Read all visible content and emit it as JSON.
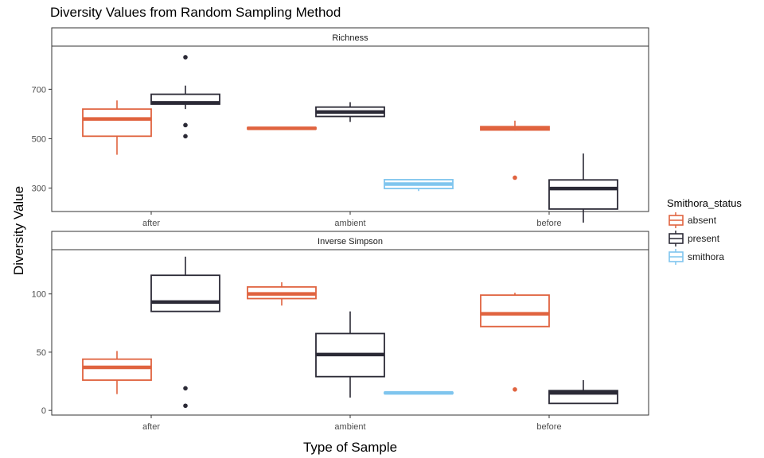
{
  "chart_data": {
    "type": "boxplot",
    "title": "Diversity Values from Random Sampling Method",
    "xlabel": "Type of Sample",
    "ylabel": "Diversity Value",
    "legend": {
      "title": "Smithora_status",
      "position": "right",
      "entries": [
        {
          "name": "absent",
          "color": "#E0633F"
        },
        {
          "name": "present",
          "color": "#2B2A36"
        },
        {
          "name": "smithora",
          "color": "#7FC5EE"
        }
      ]
    },
    "categories": [
      "after",
      "ambient",
      "before"
    ],
    "facets": [
      {
        "label": "Richness",
        "ylim": [
          205,
          875
        ],
        "yticks": [
          300,
          500,
          700
        ],
        "boxes": [
          {
            "category": "after",
            "series": "absent",
            "min": 435,
            "q1": 510,
            "median": 580,
            "q3": 620,
            "max": 655,
            "outliers": []
          },
          {
            "category": "after",
            "series": "present",
            "min": 620,
            "q1": 640,
            "median": 645,
            "q3": 680,
            "max": 715,
            "outliers": [
              830,
              555,
              510
            ]
          },
          {
            "category": "ambient",
            "series": "absent",
            "min": 537,
            "q1": 539,
            "median": 542,
            "q3": 545,
            "max": 547,
            "outliers": []
          },
          {
            "category": "ambient",
            "series": "present",
            "min": 568,
            "q1": 590,
            "median": 608,
            "q3": 628,
            "max": 648,
            "outliers": []
          },
          {
            "category": "ambient",
            "series": "smithora",
            "min": 288,
            "q1": 298,
            "median": 316,
            "q3": 334,
            "max": 335,
            "outliers": []
          },
          {
            "category": "before",
            "series": "absent",
            "min": 532,
            "q1": 535,
            "median": 543,
            "q3": 549,
            "max": 573,
            "outliers": [
              342
            ]
          },
          {
            "category": "before",
            "series": "present",
            "min": 160,
            "q1": 215,
            "median": 298,
            "q3": 333,
            "max": 440,
            "outliers": []
          }
        ]
      },
      {
        "label": "Inverse Simpson",
        "ylim": [
          -4,
          138
        ],
        "yticks": [
          0,
          50,
          100
        ],
        "boxes": [
          {
            "category": "after",
            "series": "absent",
            "min": 14,
            "q1": 26,
            "median": 37,
            "q3": 44,
            "max": 51,
            "outliers": []
          },
          {
            "category": "after",
            "series": "present",
            "min": 85,
            "q1": 85,
            "median": 93,
            "q3": 116,
            "max": 132,
            "outliers": [
              19,
              4
            ]
          },
          {
            "category": "ambient",
            "series": "absent",
            "min": 90,
            "q1": 96,
            "median": 100,
            "q3": 106,
            "max": 110,
            "outliers": []
          },
          {
            "category": "ambient",
            "series": "present",
            "min": 11,
            "q1": 29,
            "median": 48,
            "q3": 66,
            "max": 85,
            "outliers": []
          },
          {
            "category": "ambient",
            "series": "smithora",
            "min": 14,
            "q1": 14.5,
            "median": 15,
            "q3": 15.5,
            "max": 16,
            "outliers": []
          },
          {
            "category": "before",
            "series": "absent",
            "min": 72,
            "q1": 72,
            "median": 83,
            "q3": 99,
            "max": 101,
            "outliers": [
              18
            ]
          },
          {
            "category": "before",
            "series": "present",
            "min": 6,
            "q1": 6,
            "median": 15,
            "q3": 17,
            "max": 26,
            "outliers": []
          }
        ]
      }
    ],
    "grid": false
  }
}
